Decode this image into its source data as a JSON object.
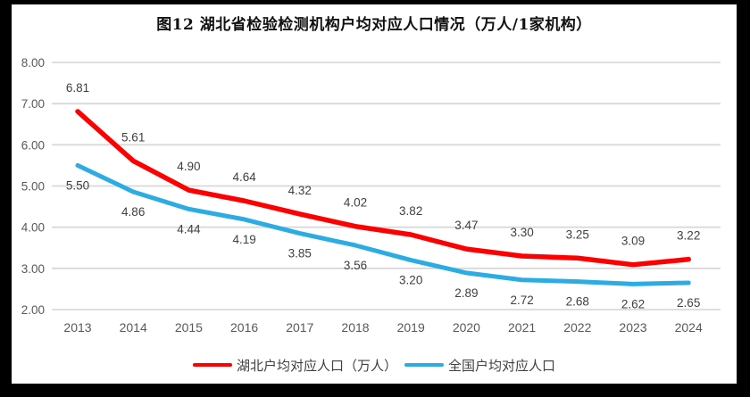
{
  "title": "图12 湖北省检验检测机构户均对应人口情况（万人/1家机构）",
  "colors": {
    "hubei_line": "#ff0000",
    "national_line": "#2bace2",
    "gridline": "#d9d9d9",
    "axis_text": "#595959",
    "data_label": "#404040",
    "frame": "#000000",
    "background": "#ffffff"
  },
  "legend": {
    "hubei_label": "湖北户均对应人口（万人）",
    "national_label": "全国户均对应人口"
  },
  "chart_data": {
    "type": "line",
    "title": "图12 湖北省检验检测机构户均对应人口情况（万人/1家机构）",
    "x": [
      "2013",
      "2014",
      "2015",
      "2016",
      "2017",
      "2018",
      "2019",
      "2020",
      "2021",
      "2022",
      "2023",
      "2024"
    ],
    "series": [
      {
        "name": "湖北户均对应人口（万人）",
        "color": "#ff0000",
        "values": [
          6.81,
          5.61,
          4.9,
          4.64,
          4.32,
          4.02,
          3.82,
          3.47,
          3.3,
          3.25,
          3.09,
          3.22
        ],
        "label_position": "above"
      },
      {
        "name": "全国户均对应人口",
        "color": "#2bace2",
        "values": [
          5.5,
          4.86,
          4.44,
          4.19,
          3.85,
          3.56,
          3.2,
          2.89,
          2.72,
          2.68,
          2.62,
          2.65
        ],
        "label_position": "below"
      }
    ],
    "ylim": [
      2,
      8
    ],
    "yticks": [
      2,
      3,
      4,
      5,
      6,
      7,
      8
    ],
    "ytick_labels": [
      "2.00",
      "3.00",
      "4.00",
      "5.00",
      "6.00",
      "7.00",
      "8.00"
    ],
    "xlabel": "",
    "ylabel": "",
    "grid": "horizontal",
    "legend_position": "bottom",
    "data_labels_shown": true
  }
}
